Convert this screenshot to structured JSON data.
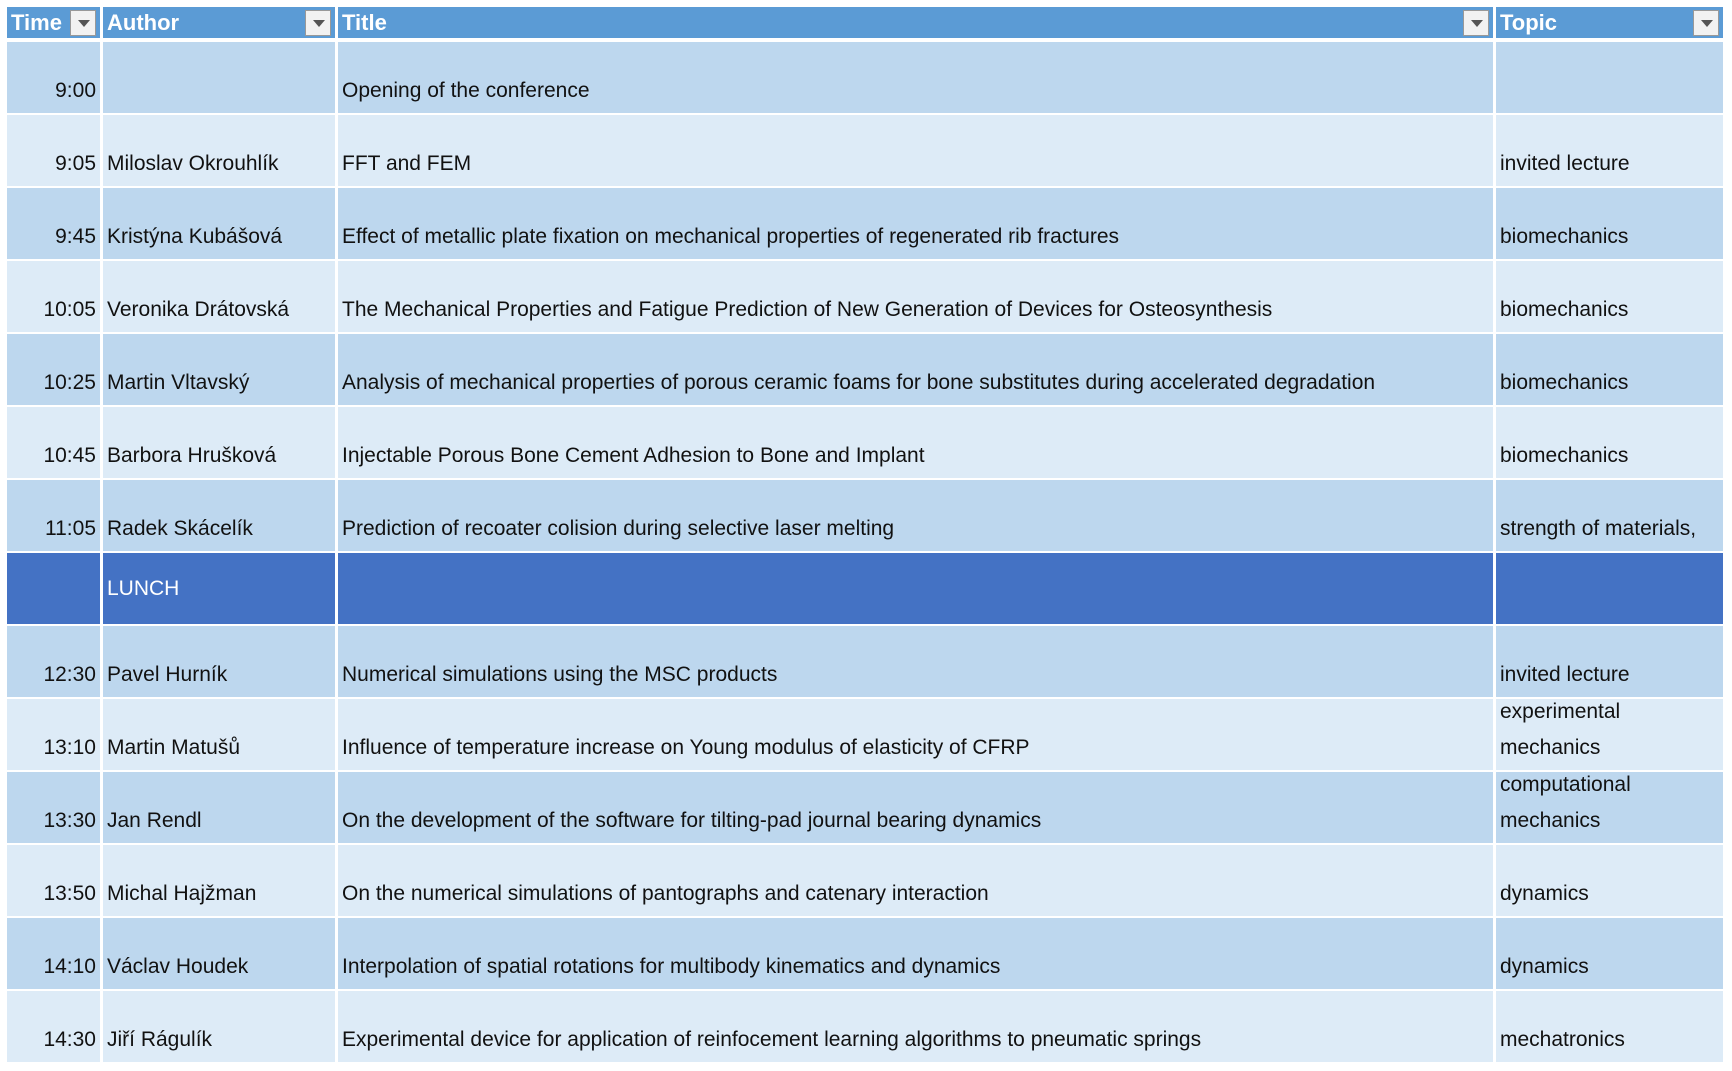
{
  "header": {
    "columns": [
      "Time",
      "Author",
      "Title",
      "Topic"
    ]
  },
  "table": {
    "rows": [
      {
        "time": "9:00",
        "title": "Opening of the conference"
      },
      {
        "time": "9:05",
        "author": "Miloslav Okrouhlík",
        "title": "FFT and FEM",
        "topic": "invited lecture"
      },
      {
        "time": "9:45",
        "author": "Kristýna Kubášová",
        "title": "Effect of metallic plate fixation on mechanical properties of regenerated rib fractures",
        "topic": "biomechanics"
      },
      {
        "time": "10:05",
        "author": "Veronika Drátovská",
        "title": "The Mechanical Properties and Fatigue Prediction of New Generation of Devices for Osteosynthesis",
        "topic": "biomechanics"
      },
      {
        "time": "10:25",
        "author": "Martin Vltavský",
        "title": "Analysis of mechanical properties of porous ceramic foams for bone substitutes during accelerated degradation",
        "topic": "biomechanics"
      },
      {
        "time": "10:45",
        "author": "Barbora Hrušková",
        "title": "Injectable Porous Bone Cement Adhesion to Bone and Implant",
        "topic": "biomechanics"
      },
      {
        "time": "11:05",
        "author": "Radek Skácelík",
        "title": "Prediction of recoater colision during selective laser melting",
        "topic": "strength of materials,"
      },
      {
        "author": "LUNCH"
      },
      {
        "time": "12:30",
        "author": "Pavel Hurník",
        "title": "Numerical simulations using the MSC products",
        "topic": "invited lecture"
      },
      {
        "time": "13:10",
        "author": "Martin Matušů",
        "title": "Influence of temperature increase on Young modulus of elasticity of CFRP",
        "topic": "experimental mechanics"
      },
      {
        "time": "13:30",
        "author": "Jan Rendl",
        "title": "On the development of the software for tilting-pad journal bearing dynamics",
        "topic": "computational mechanics"
      },
      {
        "time": "13:50",
        "author": "Michal Hajžman",
        "title": "On the numerical simulations of pantographs and catenary interaction",
        "topic": "dynamics"
      },
      {
        "time": "14:10",
        "author": "Václav Houdek",
        "title": "Interpolation of spatial rotations for multibody kinematics and dynamics",
        "topic": "dynamics"
      },
      {
        "time": "14:30",
        "author": "Jiří Rágulík",
        "title": "Experimental device for application of reinfocement learning algorithms to pneumatic springs",
        "topic": "mechatronics"
      }
    ]
  }
}
